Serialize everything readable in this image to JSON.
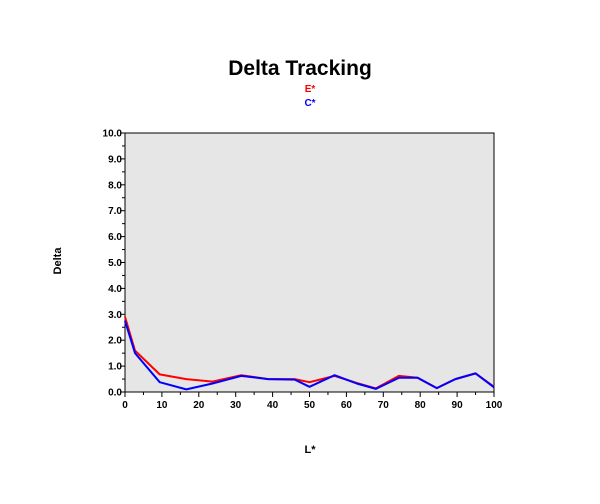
{
  "chart_data": {
    "type": "line",
    "title": "Delta Tracking",
    "xlabel": "L*",
    "ylabel": "Delta",
    "xlim": [
      0,
      100
    ],
    "ylim": [
      0,
      10
    ],
    "xticks": [
      "0",
      "10",
      "20",
      "30",
      "40",
      "50",
      "60",
      "70",
      "80",
      "90",
      "100"
    ],
    "yticks": [
      "0.0",
      "1.0",
      "2.0",
      "3.0",
      "4.0",
      "5.0",
      "6.0",
      "7.0",
      "8.0",
      "9.0",
      "10.0"
    ],
    "grid": false,
    "background": "#e6e6e6",
    "legend_position": "top-center",
    "series": [
      {
        "name": "E*",
        "color": "#ff0000",
        "x": [
          0,
          2.7,
          9.4,
          16.6,
          23.7,
          31.5,
          38.8,
          46.0,
          50.0,
          56.8,
          62.8,
          68.0,
          74.2,
          79.3,
          84.5,
          89.5,
          95.0,
          100
        ],
        "y": [
          2.9,
          1.6,
          0.68,
          0.5,
          0.4,
          0.65,
          0.5,
          0.5,
          0.38,
          0.62,
          0.35,
          0.14,
          0.62,
          0.55,
          0.15,
          0.5,
          0.72,
          0.2
        ]
      },
      {
        "name": "C*",
        "color": "#0000ff",
        "x": [
          0,
          2.7,
          9.4,
          16.6,
          23.7,
          31.5,
          38.8,
          46.0,
          50.0,
          56.8,
          62.8,
          68.0,
          74.2,
          79.3,
          84.5,
          89.5,
          95.0,
          100
        ],
        "y": [
          2.75,
          1.5,
          0.38,
          0.1,
          0.33,
          0.62,
          0.5,
          0.48,
          0.2,
          0.65,
          0.33,
          0.12,
          0.55,
          0.55,
          0.15,
          0.5,
          0.72,
          0.18
        ]
      }
    ]
  }
}
